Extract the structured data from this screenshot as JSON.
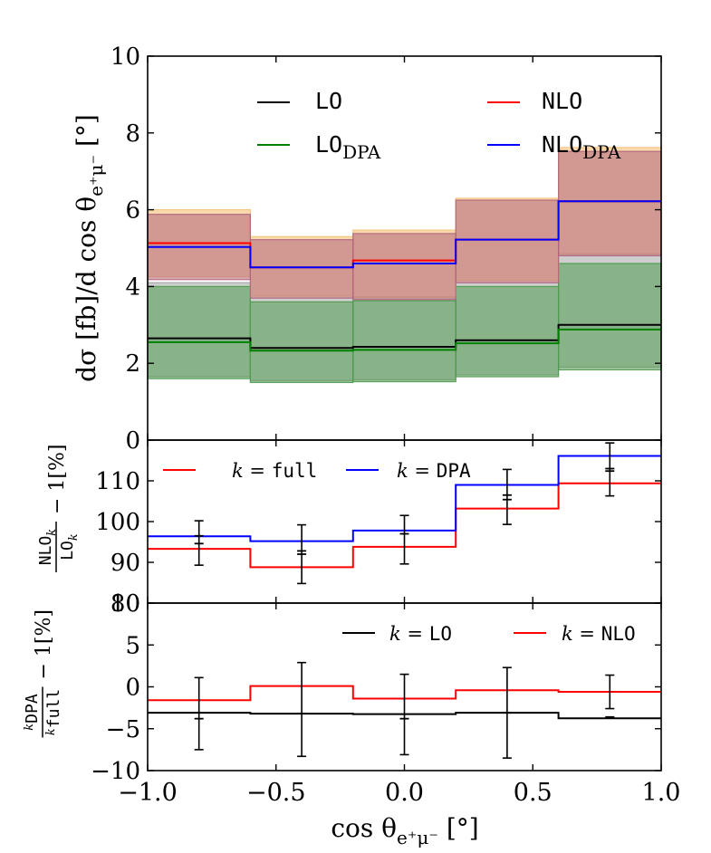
{
  "chart_data": {
    "type": "step",
    "x_edges": [
      -1.0,
      -0.6,
      -0.2,
      0.2,
      0.6,
      1.0
    ],
    "bin_centers": [
      -0.8,
      -0.4,
      0.0,
      0.4,
      0.8
    ],
    "xlabel": {
      "main": "cos θ",
      "sub": "e⁺μ⁻",
      "unit": "[°]"
    },
    "x_ticks": [
      "−1.0",
      "−0.5",
      "0.0",
      "0.5",
      "1.0"
    ],
    "x_tick_values": [
      -1.0,
      -0.5,
      0.0,
      0.5,
      1.0
    ],
    "panels": [
      {
        "name": "main",
        "ylabel": {
          "pre": "dσ [fb]/d cos θ",
          "sub": "e⁺μ⁻",
          "unit": "[°]"
        },
        "ylim": [
          0,
          10
        ],
        "y_ticks": [
          "0",
          "2",
          "4",
          "6",
          "8",
          "10"
        ],
        "y_tick_values": [
          0,
          2,
          4,
          6,
          8,
          10
        ],
        "legend": [
          {
            "name": "LO",
            "sub": "",
            "color": "#000000"
          },
          {
            "name": "NLO",
            "sub": "",
            "color": "#ff0000"
          },
          {
            "name": "LO",
            "sub": "DPA",
            "color": "#008000"
          },
          {
            "name": "NLO",
            "sub": "DPA",
            "color": "#0000ff"
          }
        ],
        "series": [
          {
            "name": "LO",
            "color": "#000000",
            "values": [
              2.65,
              2.4,
              2.43,
              2.6,
              3.0
            ]
          },
          {
            "name": "LO_DPA",
            "color": "#008000",
            "values": [
              2.55,
              2.33,
              2.35,
              2.52,
              2.88
            ]
          },
          {
            "name": "NLO",
            "color": "#ff0000",
            "values": [
              5.13,
              4.5,
              4.68,
              5.22,
              6.22
            ]
          },
          {
            "name": "NLO_DPA",
            "color": "#0000ff",
            "values": [
              5.03,
              4.5,
              4.6,
              5.22,
              6.22
            ]
          }
        ],
        "bands": [
          {
            "name": "LO band",
            "color": "#9e9e9e",
            "opacity": 0.5,
            "low": [
              1.65,
              1.55,
              1.57,
              1.7,
              1.9
            ],
            "high": [
              4.1,
              3.7,
              3.73,
              4.1,
              4.85
            ]
          },
          {
            "name": "LO_DPA band",
            "color": "#4f9a4f",
            "opacity": 0.55,
            "low": [
              1.6,
              1.5,
              1.52,
              1.65,
              1.83
            ],
            "high": [
              4.0,
              3.6,
              3.63,
              4.0,
              4.6
            ]
          },
          {
            "name": "NLO band",
            "color": "#f5c27a",
            "opacity": 0.6,
            "low": [
              4.25,
              3.75,
              3.72,
              4.15,
              4.85
            ],
            "high": [
              6.0,
              5.3,
              5.47,
              6.3,
              7.62
            ]
          },
          {
            "name": "NLO_DPA band",
            "color": "#b0647a",
            "opacity": 0.55,
            "low": [
              4.18,
              3.7,
              3.66,
              4.1,
              4.8
            ],
            "high": [
              5.88,
              5.22,
              5.38,
              6.25,
              7.52
            ]
          }
        ]
      },
      {
        "name": "k-factor ratio",
        "ylabel": {
          "num": "NLO",
          "den": "LO",
          "sub": "k",
          "tail": "− 1[%]"
        },
        "ylim": [
          80,
          120
        ],
        "y_ticks": [
          "80",
          "90",
          "100",
          "110"
        ],
        "y_tick_values": [
          80,
          90,
          100,
          110
        ],
        "legend": [
          {
            "label": "k = ",
            "mono": "full",
            "color": "#ff0000"
          },
          {
            "label": "k = ",
            "mono": "DPA",
            "color": "#0000ff"
          }
        ],
        "series": [
          {
            "name": "k=full",
            "color": "#ff0000",
            "values": [
              93.3,
              88.8,
              93.8,
              103.2,
              109.4
            ]
          },
          {
            "name": "k=DPA",
            "color": "#0000ff",
            "values": [
              96.4,
              95.2,
              97.8,
              109.0,
              116.1
            ]
          }
        ],
        "errorbars": [
          {
            "x": -0.8,
            "center": 96.5,
            "low": 89.3,
            "high": 100.2,
            "caps": [
              94.6,
              96.5
            ]
          },
          {
            "x": -0.4,
            "center": 92.8,
            "low": 84.8,
            "high": 99.2,
            "caps": [
              92.0,
              92.8
            ]
          },
          {
            "x": 0.0,
            "center": 97.8,
            "low": 89.6,
            "high": 101.5,
            "caps": [
              97.0
            ]
          },
          {
            "x": 0.4,
            "center": 106.5,
            "low": 99.3,
            "high": 112.8,
            "caps": [
              105.4,
              106.5
            ]
          },
          {
            "x": 0.8,
            "center": 113.0,
            "low": 106.3,
            "high": 119.3,
            "caps": [
              112.4,
              113.0
            ]
          }
        ]
      },
      {
        "name": "DPA ratio",
        "ylabel": {
          "num": "DPA",
          "den": "full",
          "sup": "k",
          "tail": "− 1[%]"
        },
        "ylim": [
          -10,
          10
        ],
        "y_ticks": [
          "−10",
          "−5",
          "0",
          "5",
          "10"
        ],
        "y_tick_values": [
          -10,
          -5,
          0,
          5,
          10
        ],
        "legend": [
          {
            "label": "k = ",
            "mono": "LO",
            "color": "#000000"
          },
          {
            "label": "k = ",
            "mono": "NLO",
            "color": "#ff0000"
          }
        ],
        "series": [
          {
            "name": "k=LO",
            "color": "#000000",
            "values": [
              -3.1,
              -3.2,
              -3.25,
              -3.1,
              -3.75
            ]
          },
          {
            "name": "k=NLO",
            "color": "#ff0000",
            "values": [
              -1.6,
              0.1,
              -1.4,
              -0.4,
              -0.6
            ]
          }
        ],
        "errorbars": [
          {
            "x": -0.8,
            "center": -3.2,
            "low": -7.5,
            "high": 1.1,
            "caps": [
              -3.8
            ]
          },
          {
            "x": -0.4,
            "center": -3.2,
            "low": -8.3,
            "high": 2.9,
            "caps": [
              -3.2
            ]
          },
          {
            "x": 0.0,
            "center": -3.3,
            "low": -8.1,
            "high": 1.5,
            "caps": [
              -3.8
            ]
          },
          {
            "x": 0.4,
            "center": -3.1,
            "low": -8.5,
            "high": 2.3,
            "caps": [
              -3.1
            ]
          },
          {
            "x": 0.8,
            "center": -3.6,
            "low": -2.6,
            "high": 1.4,
            "caps": [
              -3.6
            ]
          }
        ]
      }
    ]
  }
}
